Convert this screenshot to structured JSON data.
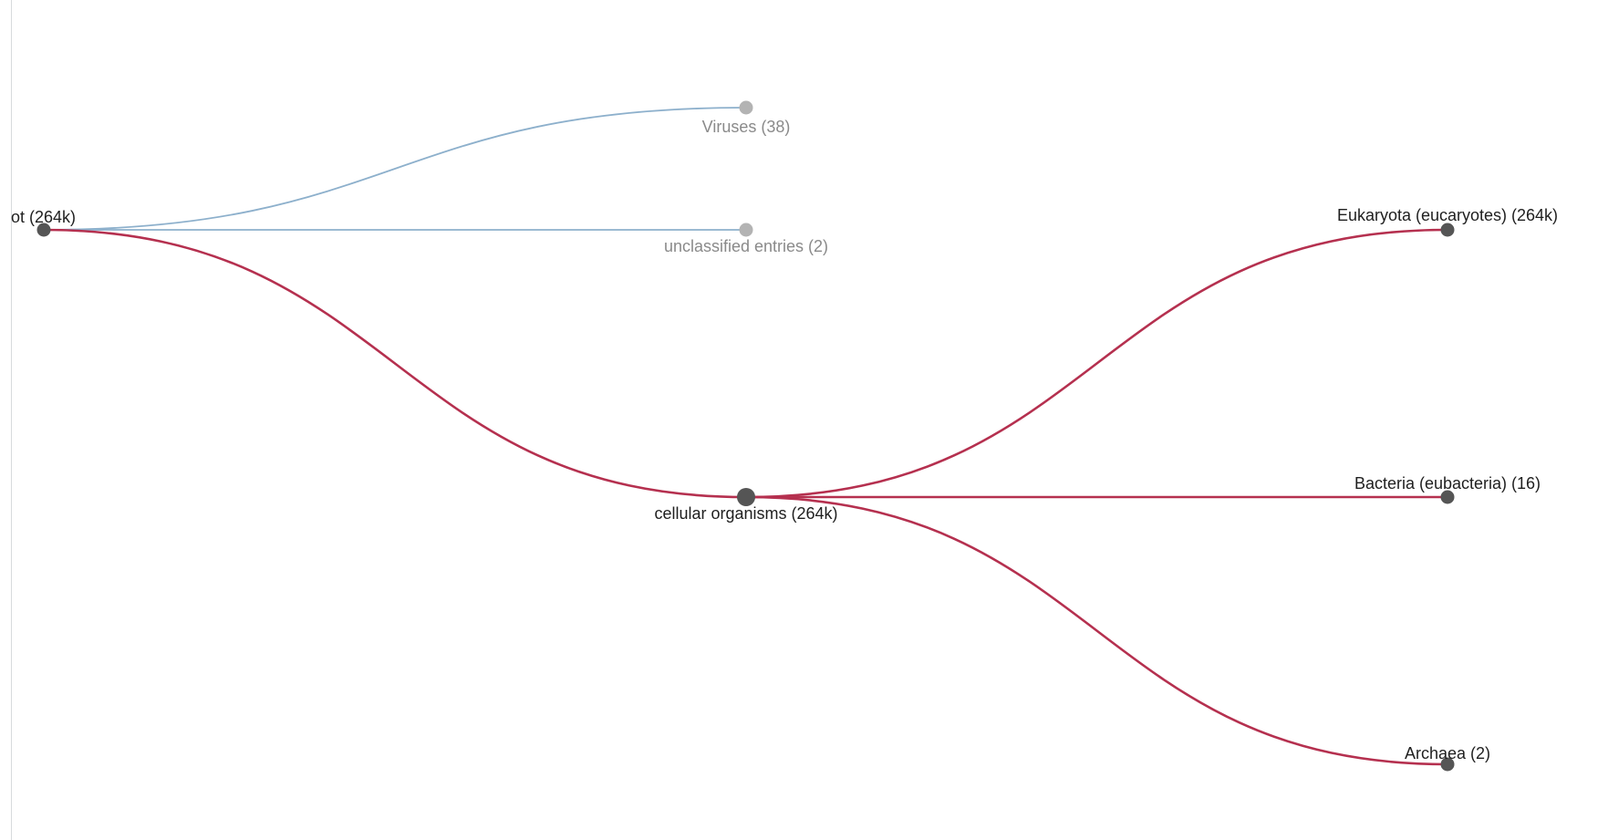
{
  "colors": {
    "expanded_link": "#b5304f",
    "collapsed_link": "#8db0cc",
    "expanded_node": "#555555",
    "collapsed_node": "#b3b3b3",
    "expanded_label": "#1f1f1f",
    "collapsed_label": "#8a8a8a"
  },
  "tree": {
    "nodes": [
      {
        "id": "root",
        "label": "ot (264k)",
        "depth": 0,
        "state": "expanded"
      },
      {
        "id": "viruses",
        "label": "Viruses (38)",
        "depth": 1,
        "parent": "root",
        "state": "collapsed"
      },
      {
        "id": "unclassified",
        "label": "unclassified entries (2)",
        "depth": 1,
        "parent": "root",
        "state": "collapsed"
      },
      {
        "id": "cellular",
        "label": "cellular organisms (264k)",
        "depth": 1,
        "parent": "root",
        "state": "expanded"
      },
      {
        "id": "eukaryota",
        "label": "Eukaryota (eucaryotes) (264k)",
        "depth": 2,
        "parent": "cellular",
        "state": "expanded"
      },
      {
        "id": "bacteria",
        "label": "Bacteria (eubacteria) (16)",
        "depth": 2,
        "parent": "cellular",
        "state": "expanded"
      },
      {
        "id": "archaea",
        "label": "Archaea (2)",
        "depth": 2,
        "parent": "cellular",
        "state": "expanded"
      }
    ]
  }
}
